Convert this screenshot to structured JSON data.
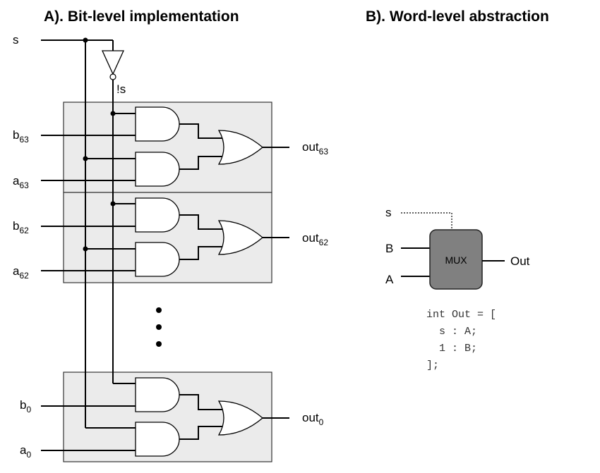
{
  "panel_a": {
    "title": "A). Bit-level implementation",
    "select_label": "s",
    "inverted_select_label": "!s",
    "blocks": [
      {
        "b_label": "b",
        "b_sub": "63",
        "a_label": "a",
        "a_sub": "63",
        "out_label": "out",
        "out_sub": "63"
      },
      {
        "b_label": "b",
        "b_sub": "62",
        "a_label": "a",
        "a_sub": "62",
        "out_label": "out",
        "out_sub": "62"
      },
      {
        "b_label": "b",
        "b_sub": "0",
        "a_label": "a",
        "a_sub": "0",
        "out_label": "out",
        "out_sub": "0"
      }
    ]
  },
  "panel_b": {
    "title": "B). Word-level abstraction",
    "mux_label": "MUX",
    "select_label": "s",
    "input_b_label": "B",
    "input_a_label": "A",
    "output_label": "Out",
    "code_lines": [
      "int Out = [",
      "  s : A;",
      "  1 : B;",
      "];"
    ]
  },
  "colors": {
    "panel_fill": "#ebebeb",
    "mux_fill": "#808080",
    "wire": "#000000"
  }
}
